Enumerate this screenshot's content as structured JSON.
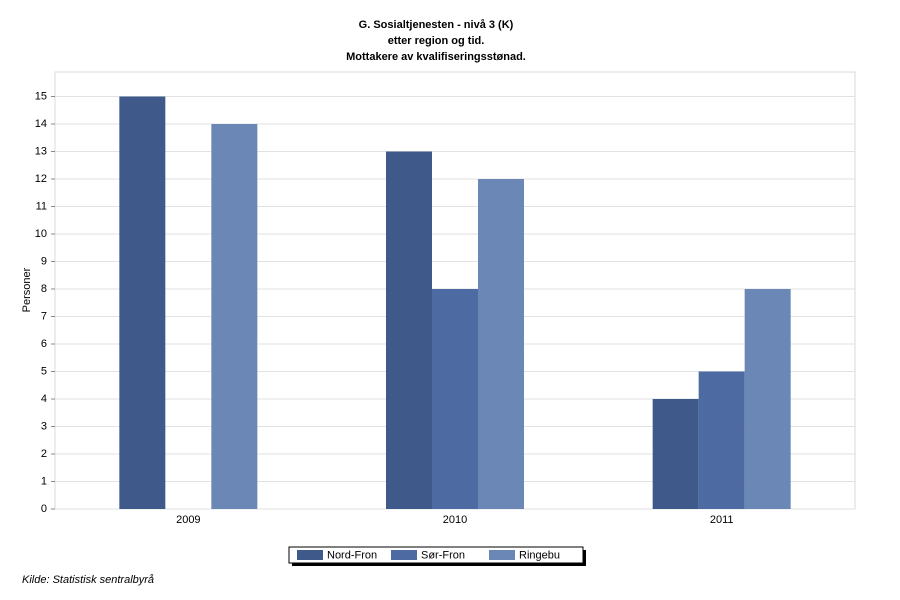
{
  "chart_data": {
    "type": "bar",
    "title": [
      "G. Sosialtjenesten - nivå 3 (K)",
      "etter region og tid.",
      "Mottakere av kvalifiseringsstønad."
    ],
    "y_label": "Personer",
    "source": "Kilde: Statistisk sentralbyrå",
    "categories": [
      "2009",
      "2010",
      "2011"
    ],
    "series": [
      {
        "name": "Nord-Fron",
        "color": "#3f5a8a",
        "values": [
          15,
          13,
          4
        ]
      },
      {
        "name": "Sør-Fron",
        "color": "#4d6aa2",
        "values": [
          null,
          8,
          5
        ]
      },
      {
        "name": "Ringebu",
        "color": "#6b87b5",
        "values": [
          14,
          12,
          8
        ]
      }
    ],
    "ylim": [
      0,
      16
    ],
    "yticks": [
      0,
      1,
      2,
      3,
      4,
      5,
      6,
      7,
      8,
      9,
      10,
      11,
      12,
      13,
      14,
      15
    ],
    "grid": true
  }
}
